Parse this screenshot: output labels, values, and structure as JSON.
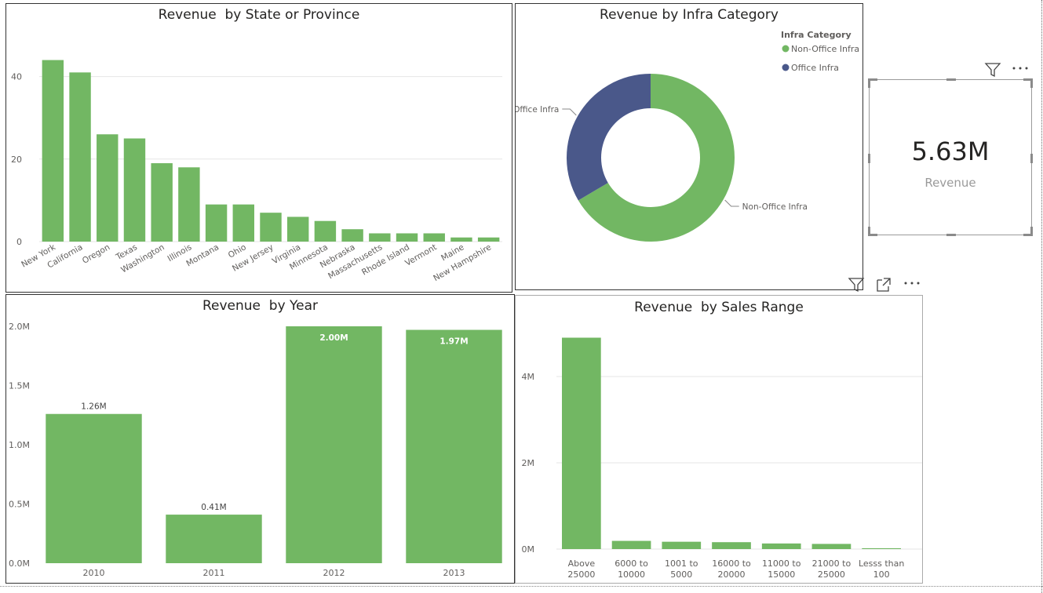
{
  "colors": {
    "green": "#72B763",
    "navy": "#4A588A",
    "grid": "#e6e6e6",
    "axis_text": "#605e5c"
  },
  "card": {
    "value": "5.63M",
    "label": "Revenue"
  },
  "icons": [
    "filter-icon",
    "more-options-icon",
    "focus-mode-icon"
  ],
  "chart_data": [
    {
      "id": "state",
      "type": "bar",
      "title": "Revenue  by State or Province",
      "categories": [
        "New York",
        "California",
        "Oregon",
        "Texas",
        "Washington",
        "Illinois",
        "Montana",
        "Ohio",
        "New Jersey",
        "Virginia",
        "Minnesota",
        "Nebraska",
        "Massachusetts",
        "Rhode Island",
        "Vermont",
        "Maine",
        "New Hampshire"
      ],
      "values": [
        44,
        41,
        26,
        25,
        19,
        18,
        9,
        9,
        7,
        6,
        5,
        3,
        2,
        2,
        2,
        1,
        1
      ],
      "yticks": [
        "0",
        "20",
        "40"
      ],
      "ytick_values": [
        0,
        20,
        40
      ],
      "ylim": [
        0,
        50
      ],
      "grid": true
    },
    {
      "id": "infra",
      "type": "pie",
      "title": "Revenue by Infra Category",
      "legend_title": "Infra Category",
      "categories": [
        "Non-Office Infra",
        "Office Infra"
      ],
      "values": [
        66.5,
        33.5
      ],
      "legend_position": "top-right"
    },
    {
      "id": "year",
      "type": "bar",
      "title": "Revenue  by Year",
      "categories": [
        "2010",
        "2011",
        "2012",
        "2013"
      ],
      "values": [
        1.26,
        0.41,
        2.0,
        1.97
      ],
      "data_labels": [
        "1.26M",
        "0.41M",
        "2.00M",
        "1.97M"
      ],
      "yticks": [
        "0.0M",
        "0.5M",
        "1.0M",
        "1.5M",
        "2.0M"
      ],
      "ytick_values": [
        0,
        0.5,
        1.0,
        1.5,
        2.0
      ],
      "ylim": [
        0,
        2.0
      ],
      "grid": false
    },
    {
      "id": "sales",
      "type": "bar",
      "title": "Revenue  by Sales Range",
      "categories": [
        [
          "Above",
          "25000"
        ],
        [
          "6000 to",
          "10000"
        ],
        [
          "1001 to",
          "5000"
        ],
        [
          "16000 to",
          "20000"
        ],
        [
          "11000 to",
          "15000"
        ],
        [
          "21000 to",
          "25000"
        ],
        [
          "Lesss than",
          "100"
        ]
      ],
      "values": [
        4.9,
        0.19,
        0.17,
        0.16,
        0.13,
        0.12,
        0.02
      ],
      "yticks": [
        "0M",
        "2M",
        "4M"
      ],
      "ytick_values": [
        0,
        2,
        4
      ],
      "ylim": [
        0,
        5.2
      ],
      "grid": true
    }
  ]
}
